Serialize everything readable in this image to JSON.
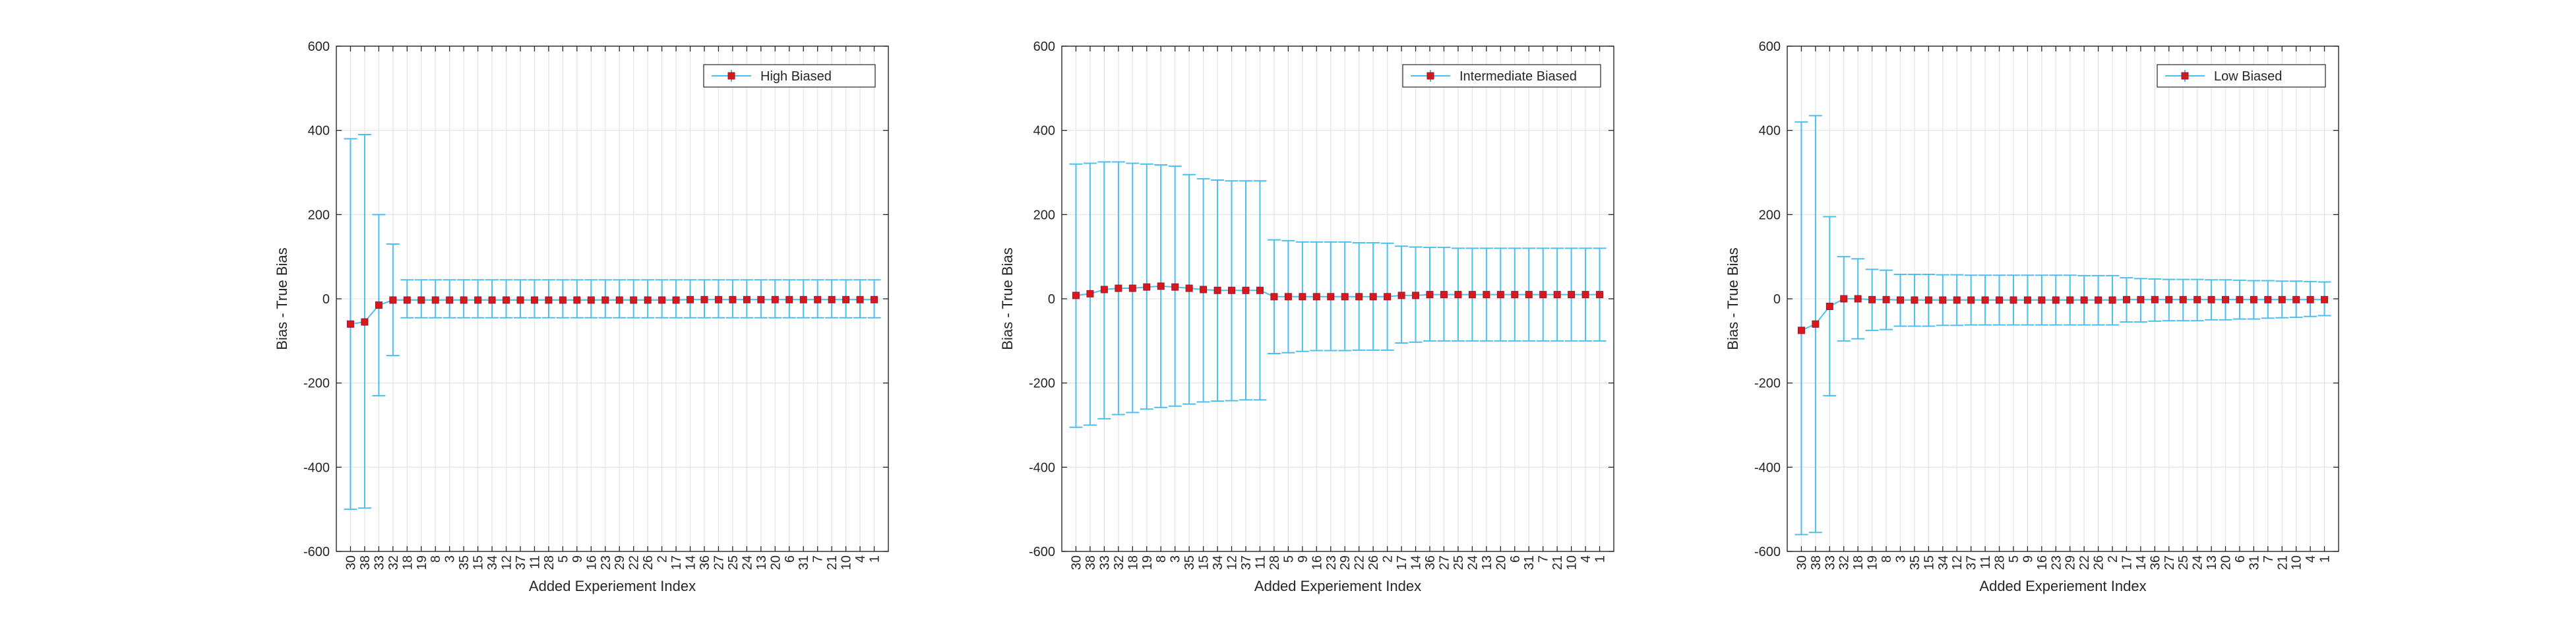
{
  "colors": {
    "errorbar": "#4DBEEE",
    "marker": "#D7191C",
    "marker_edge": "#A2142F",
    "grid": "#e6e6e6",
    "axis": "#262626"
  },
  "chart_data": [
    {
      "type": "errorbar",
      "xlabel": "Added Experiement Index",
      "ylabel": "Bias - True Bias",
      "ylim": [
        -600,
        600
      ],
      "yticks": [
        -600,
        -400,
        -200,
        0,
        200,
        400,
        600
      ],
      "grid": true,
      "legend_position": "top-right",
      "categories": [
        "30",
        "38",
        "33",
        "32",
        "18",
        "19",
        "8",
        "3",
        "35",
        "15",
        "34",
        "12",
        "37",
        "11",
        "28",
        "5",
        "9",
        "16",
        "23",
        "29",
        "22",
        "26",
        "2",
        "17",
        "14",
        "36",
        "27",
        "25",
        "24",
        "13",
        "20",
        "6",
        "31",
        "7",
        "21",
        "10",
        "4",
        "1"
      ],
      "series": [
        {
          "name": "High Biased",
          "values": [
            -60,
            -55,
            -15,
            -3,
            -3,
            -3,
            -3,
            -3,
            -3,
            -3,
            -3,
            -3,
            -3,
            -3,
            -3,
            -3,
            -3,
            -3,
            -3,
            -3,
            -3,
            -3,
            -3,
            -3,
            -2,
            -2,
            -2,
            -2,
            -2,
            -2,
            -2,
            -2,
            -2,
            -2,
            -2,
            -2,
            -2,
            -2
          ],
          "lower": [
            -500,
            -497,
            -230,
            -135,
            -45,
            -45,
            -45,
            -45,
            -45,
            -45,
            -45,
            -45,
            -45,
            -45,
            -45,
            -45,
            -45,
            -45,
            -45,
            -45,
            -45,
            -45,
            -45,
            -45,
            -45,
            -45,
            -45,
            -45,
            -45,
            -45,
            -45,
            -45,
            -45,
            -45,
            -45,
            -45,
            -45,
            -45
          ],
          "upper": [
            380,
            390,
            200,
            130,
            45,
            45,
            45,
            45,
            45,
            45,
            45,
            45,
            45,
            45,
            45,
            45,
            45,
            45,
            45,
            45,
            45,
            45,
            45,
            45,
            45,
            45,
            45,
            45,
            45,
            45,
            45,
            45,
            45,
            45,
            45,
            45,
            45,
            45
          ]
        }
      ]
    },
    {
      "type": "errorbar",
      "xlabel": "Added Experiement Index",
      "ylabel": "Bias - True Bias",
      "ylim": [
        -600,
        600
      ],
      "yticks": [
        -600,
        -400,
        -200,
        0,
        200,
        400,
        600
      ],
      "grid": true,
      "legend_position": "top-right",
      "categories": [
        "30",
        "38",
        "33",
        "32",
        "18",
        "19",
        "8",
        "3",
        "35",
        "15",
        "34",
        "12",
        "37",
        "11",
        "28",
        "5",
        "9",
        "16",
        "23",
        "29",
        "22",
        "26",
        "2",
        "17",
        "14",
        "36",
        "27",
        "25",
        "24",
        "13",
        "20",
        "6",
        "31",
        "7",
        "21",
        "10",
        "4",
        "1"
      ],
      "series": [
        {
          "name": "Intermediate Biased",
          "values": [
            8,
            12,
            22,
            25,
            25,
            28,
            30,
            28,
            25,
            22,
            20,
            20,
            20,
            20,
            5,
            5,
            5,
            5,
            5,
            5,
            5,
            5,
            5,
            8,
            8,
            10,
            10,
            10,
            10,
            10,
            10,
            10,
            10,
            10,
            10,
            10,
            10,
            10
          ],
          "lower": [
            -305,
            -300,
            -285,
            -275,
            -270,
            -262,
            -258,
            -255,
            -250,
            -245,
            -243,
            -242,
            -240,
            -240,
            -130,
            -128,
            -125,
            -123,
            -123,
            -123,
            -122,
            -122,
            -122,
            -105,
            -103,
            -100,
            -100,
            -100,
            -100,
            -100,
            -100,
            -100,
            -100,
            -100,
            -100,
            -100,
            -100,
            -100
          ],
          "upper": [
            320,
            322,
            325,
            325,
            322,
            320,
            318,
            315,
            295,
            285,
            282,
            280,
            280,
            280,
            140,
            138,
            135,
            135,
            135,
            135,
            133,
            133,
            132,
            125,
            123,
            122,
            122,
            120,
            120,
            120,
            120,
            120,
            120,
            120,
            120,
            120,
            120,
            120
          ]
        }
      ]
    },
    {
      "type": "errorbar",
      "xlabel": "Added Experiement Index",
      "ylabel": "Bias - True Bias",
      "ylim": [
        -600,
        600
      ],
      "yticks": [
        -600,
        -400,
        -200,
        0,
        200,
        400,
        600
      ],
      "grid": true,
      "legend_position": "top-right",
      "categories": [
        "30",
        "38",
        "33",
        "32",
        "18",
        "19",
        "8",
        "3",
        "35",
        "15",
        "34",
        "12",
        "37",
        "11",
        "28",
        "5",
        "9",
        "16",
        "23",
        "29",
        "22",
        "26",
        "2",
        "17",
        "14",
        "36",
        "27",
        "25",
        "24",
        "13",
        "20",
        "6",
        "31",
        "7",
        "21",
        "10",
        "4",
        "1"
      ],
      "series": [
        {
          "name": "Low Biased",
          "values": [
            -75,
            -60,
            -18,
            0,
            0,
            -2,
            -2,
            -3,
            -3,
            -3,
            -3,
            -3,
            -3,
            -3,
            -3,
            -3,
            -3,
            -3,
            -3,
            -3,
            -3,
            -3,
            -3,
            -2,
            -2,
            -2,
            -2,
            -2,
            -2,
            -2,
            -2,
            -2,
            -2,
            -2,
            -2,
            -2,
            -2,
            -2
          ],
          "lower": [
            -560,
            -555,
            -230,
            -100,
            -95,
            -75,
            -73,
            -65,
            -65,
            -65,
            -63,
            -63,
            -62,
            -62,
            -62,
            -62,
            -62,
            -62,
            -62,
            -62,
            -62,
            -62,
            -62,
            -55,
            -55,
            -53,
            -52,
            -52,
            -52,
            -50,
            -50,
            -48,
            -48,
            -46,
            -45,
            -44,
            -42,
            -40
          ],
          "upper": [
            420,
            435,
            195,
            100,
            95,
            70,
            68,
            58,
            58,
            58,
            57,
            57,
            56,
            56,
            56,
            56,
            56,
            56,
            56,
            56,
            55,
            55,
            55,
            50,
            48,
            47,
            46,
            46,
            46,
            45,
            45,
            44,
            43,
            43,
            42,
            42,
            41,
            40
          ]
        }
      ]
    }
  ]
}
